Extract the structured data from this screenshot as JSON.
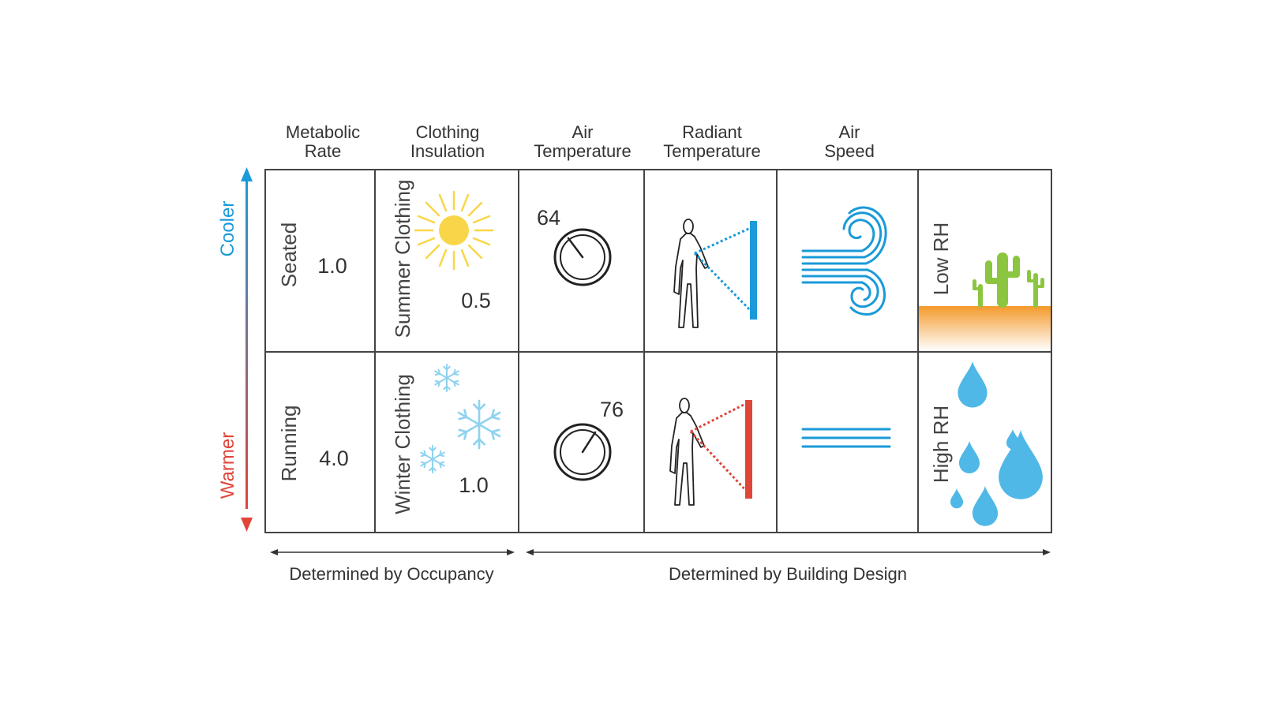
{
  "columns": [
    {
      "label_line1": "Metabolic",
      "label_line2": "Rate"
    },
    {
      "label_line1": "Clothing",
      "label_line2": "Insulation"
    },
    {
      "label_line1": "Air",
      "label_line2": "Temperature"
    },
    {
      "label_line1": "Radiant",
      "label_line2": "Temperature"
    },
    {
      "label_line1": "Air",
      "label_line2": "Speed"
    }
  ],
  "axis": {
    "top_label": "Cooler",
    "bottom_label": "Warmer",
    "top_color": "#1a9ad8",
    "bottom_color": "#e0453a"
  },
  "rows": [
    {
      "activity": "Seated",
      "metabolic_rate": "1.0",
      "clothing": "Summer Clothing",
      "clo_value": "0.5",
      "air_temp": "64",
      "humidity": "Low RH"
    },
    {
      "activity": "Running",
      "metabolic_rate": "4.0",
      "clothing": "Winter Clothing",
      "clo_value": "1.0",
      "air_temp": "76",
      "humidity": "High RH"
    }
  ],
  "footer": {
    "occupancy": "Determined by Occupancy",
    "building": "Determined by Building Design"
  },
  "colors": {
    "sun": "#f9d648",
    "snow": "#8fd3f0",
    "wind": "#1a9ad8",
    "cool_panel": "#1a9ad8",
    "warm_panel": "#e0453a",
    "cactus": "#8cc640",
    "ground": "#f49a2c",
    "water": "#4fb8e6"
  }
}
